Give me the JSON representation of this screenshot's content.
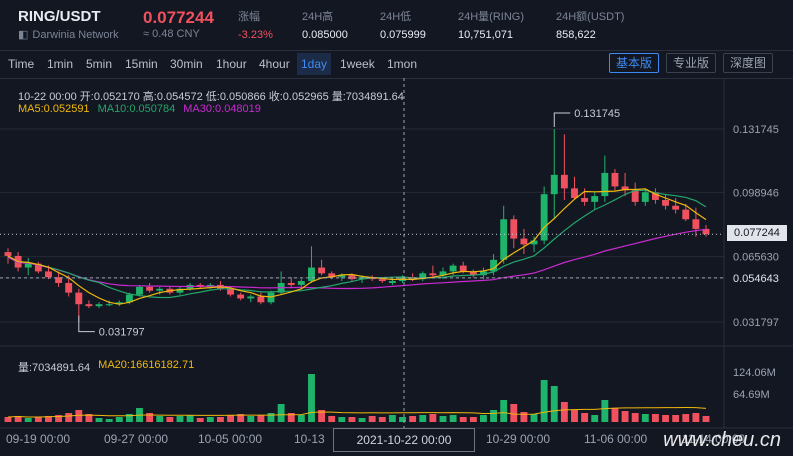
{
  "header": {
    "pair": "RING/USDT",
    "network": "Darwinia Network",
    "price": "0.077244",
    "cny": "≈ 0.48 CNY",
    "stats": [
      {
        "label": "涨幅",
        "value": "-3.23%",
        "neg": true
      },
      {
        "label": "24H高",
        "value": "0.085000"
      },
      {
        "label": "24H低",
        "value": "0.075999"
      },
      {
        "label": "24H量(RING)",
        "value": "10,751,071"
      },
      {
        "label": "24H额(USDT)",
        "value": "858,622"
      }
    ]
  },
  "toolbar": {
    "timeframes": [
      "Time",
      "1min",
      "5min",
      "15min",
      "30min",
      "1hour",
      "4hour",
      "1day",
      "1week",
      "1mon"
    ],
    "active": "1day",
    "views": [
      "基本版",
      "专业版",
      "深度图"
    ],
    "active_view": "基本版"
  },
  "info": {
    "line": "10-22 00:00  开:0.052170  高:0.054572  低:0.050866  收:0.052965  量:7034891.64",
    "ma5": "MA5:0.052591",
    "ma10": "MA10:0.050784",
    "ma30": "MA30:0.048019",
    "vol": "量:7034891.64",
    "ma20": "MA20:16616182.71"
  },
  "colors": {
    "up": "#1fb46c",
    "down": "#f0515e",
    "ma5": "#f0b90b",
    "ma10": "#23a66a",
    "ma30": "#c92ad0",
    "grid": "#252a35"
  },
  "chart_data": {
    "type": "candlestick",
    "price_ticks": [
      0.131745,
      0.098946,
      0.06563,
      0.054643,
      0.031797
    ],
    "volume_ticks": [
      "124.06M",
      "64.69M"
    ],
    "x_ticks": [
      "09-19 00:00",
      "09-27 00:00",
      "10-05 00:00",
      "10-13",
      "10-29 00:00",
      "11-06 00:00",
      "11-14 00:00"
    ],
    "crosshair_date": "2021-10-22 00:00",
    "crosshair_price": "0.054643",
    "last_price": "0.077244",
    "max_label": "0.131745",
    "min_label": "0.031797",
    "candles": [
      [
        0.068,
        0.07,
        0.062,
        0.066,
        5
      ],
      [
        0.066,
        0.068,
        0.058,
        0.06,
        6
      ],
      [
        0.06,
        0.065,
        0.056,
        0.062,
        4
      ],
      [
        0.062,
        0.063,
        0.057,
        0.058,
        5
      ],
      [
        0.058,
        0.061,
        0.054,
        0.055,
        6
      ],
      [
        0.055,
        0.058,
        0.05,
        0.052,
        7
      ],
      [
        0.052,
        0.056,
        0.045,
        0.047,
        9
      ],
      [
        0.047,
        0.049,
        0.032,
        0.041,
        12
      ],
      [
        0.041,
        0.043,
        0.039,
        0.04,
        8
      ],
      [
        0.04,
        0.042,
        0.039,
        0.041,
        4
      ],
      [
        0.041,
        0.043,
        0.04,
        0.041,
        3
      ],
      [
        0.041,
        0.043,
        0.04,
        0.042,
        5
      ],
      [
        0.042,
        0.047,
        0.041,
        0.046,
        8
      ],
      [
        0.046,
        0.051,
        0.045,
        0.05,
        14
      ],
      [
        0.05,
        0.052,
        0.047,
        0.048,
        9
      ],
      [
        0.048,
        0.05,
        0.046,
        0.049,
        6
      ],
      [
        0.049,
        0.05,
        0.046,
        0.047,
        5
      ],
      [
        0.047,
        0.05,
        0.046,
        0.049,
        6
      ],
      [
        0.049,
        0.052,
        0.048,
        0.051,
        7
      ],
      [
        0.051,
        0.052,
        0.049,
        0.05,
        4
      ],
      [
        0.05,
        0.052,
        0.049,
        0.051,
        5
      ],
      [
        0.051,
        0.053,
        0.048,
        0.049,
        5
      ],
      [
        0.049,
        0.05,
        0.045,
        0.046,
        7
      ],
      [
        0.046,
        0.047,
        0.043,
        0.044,
        8
      ],
      [
        0.044,
        0.046,
        0.042,
        0.045,
        6
      ],
      [
        0.045,
        0.047,
        0.041,
        0.042,
        7
      ],
      [
        0.042,
        0.048,
        0.041,
        0.047,
        9
      ],
      [
        0.047,
        0.058,
        0.046,
        0.052,
        18
      ],
      [
        0.052,
        0.055,
        0.05,
        0.051,
        9
      ],
      [
        0.051,
        0.054,
        0.049,
        0.053,
        7
      ],
      [
        0.053,
        0.071,
        0.052,
        0.06,
        48
      ],
      [
        0.06,
        0.064,
        0.056,
        0.057,
        12
      ],
      [
        0.057,
        0.058,
        0.054,
        0.055,
        6
      ],
      [
        0.055,
        0.057,
        0.053,
        0.056,
        5
      ],
      [
        0.056,
        0.057,
        0.053,
        0.054,
        5
      ],
      [
        0.054,
        0.056,
        0.052,
        0.055,
        4
      ],
      [
        0.055,
        0.056,
        0.053,
        0.054,
        6
      ],
      [
        0.054,
        0.055,
        0.052,
        0.053,
        5
      ],
      [
        0.052,
        0.055,
        0.051,
        0.053,
        7
      ],
      [
        0.053,
        0.056,
        0.052,
        0.055,
        5
      ],
      [
        0.055,
        0.057,
        0.053,
        0.054,
        6
      ],
      [
        0.054,
        0.058,
        0.053,
        0.057,
        7
      ],
      [
        0.057,
        0.061,
        0.055,
        0.056,
        8
      ],
      [
        0.056,
        0.06,
        0.054,
        0.058,
        6
      ],
      [
        0.058,
        0.062,
        0.056,
        0.061,
        7
      ],
      [
        0.061,
        0.063,
        0.057,
        0.058,
        5
      ],
      [
        0.058,
        0.059,
        0.055,
        0.056,
        5
      ],
      [
        0.056,
        0.06,
        0.054,
        0.058,
        7
      ],
      [
        0.058,
        0.067,
        0.056,
        0.064,
        12
      ],
      [
        0.064,
        0.092,
        0.062,
        0.085,
        22
      ],
      [
        0.085,
        0.087,
        0.07,
        0.075,
        18
      ],
      [
        0.075,
        0.08,
        0.067,
        0.072,
        10
      ],
      [
        0.072,
        0.076,
        0.068,
        0.074,
        8
      ],
      [
        0.074,
        0.102,
        0.072,
        0.098,
        42
      ],
      [
        0.098,
        0.131745,
        0.085,
        0.108,
        36
      ],
      [
        0.108,
        0.129,
        0.095,
        0.101,
        20
      ],
      [
        0.101,
        0.107,
        0.095,
        0.096,
        12
      ],
      [
        0.096,
        0.101,
        0.092,
        0.094,
        9
      ],
      [
        0.094,
        0.099,
        0.09,
        0.097,
        7
      ],
      [
        0.097,
        0.118,
        0.094,
        0.109,
        22
      ],
      [
        0.109,
        0.111,
        0.1,
        0.102,
        14
      ],
      [
        0.102,
        0.109,
        0.097,
        0.1,
        11
      ],
      [
        0.1,
        0.104,
        0.092,
        0.094,
        9
      ],
      [
        0.094,
        0.101,
        0.092,
        0.099,
        8
      ],
      [
        0.099,
        0.101,
        0.093,
        0.095,
        8
      ],
      [
        0.095,
        0.098,
        0.09,
        0.092,
        7
      ],
      [
        0.092,
        0.096,
        0.088,
        0.09,
        7
      ],
      [
        0.09,
        0.093,
        0.084,
        0.085,
        8
      ],
      [
        0.085,
        0.091,
        0.076,
        0.08,
        9
      ],
      [
        0.08,
        0.082,
        0.076,
        0.077244,
        6
      ]
    ]
  },
  "watermark": "www.cheu.cn"
}
